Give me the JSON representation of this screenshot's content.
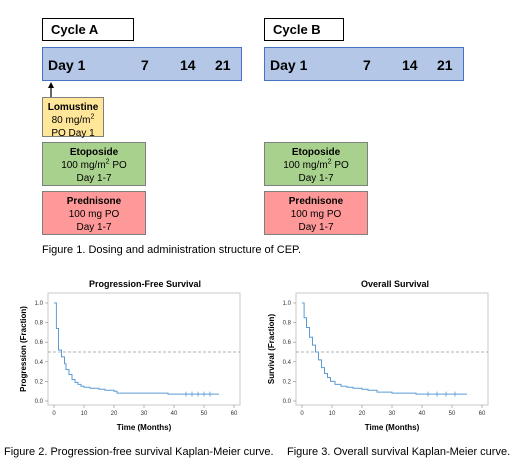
{
  "cycle_a": {
    "label": "Cycle A",
    "timeline": {
      "day1": "Day 1",
      "d7": "7",
      "d14": "14",
      "d21": "21"
    },
    "lomustine": {
      "name": "Lomustine",
      "dose_prefix": "80 mg/m",
      "dose_sup": "2",
      "schedule": "PO Day 1"
    },
    "etoposide": {
      "name": "Etoposide",
      "dose_prefix": "100 mg/m",
      "dose_sup": "2",
      "dose_suffix": " PO",
      "schedule": "Day 1-7"
    },
    "prednisone": {
      "name": "Prednisone",
      "dose": "100 mg PO",
      "schedule": "Day 1-7"
    }
  },
  "cycle_b": {
    "label": "Cycle B",
    "timeline": {
      "day1": "Day 1",
      "d7": "7",
      "d14": "14",
      "d21": "21"
    },
    "etoposide": {
      "name": "Etoposide",
      "dose_prefix": "100 mg/m",
      "dose_sup": "2",
      "dose_suffix": " PO",
      "schedule": "Day 1-7"
    },
    "prednisone": {
      "name": "Prednisone",
      "dose": "100 mg PO",
      "schedule": "Day 1-7"
    }
  },
  "captions": {
    "fig1": "Figure 1. Dosing and administration structure of CEP.",
    "fig2": "Figure 2. Progression-free survival Kaplan-Meier curve.",
    "fig3": "Figure 3. Overall survival Kaplan-Meier curve."
  },
  "colors": {
    "curve": "#5b9bd5",
    "reference_line": "#999999"
  },
  "chart_data": [
    {
      "type": "line",
      "title": "Progression-Free Survival",
      "xlabel": "Time (Months)",
      "ylabel": "Progression (Fraction)",
      "xlim": [
        0,
        60
      ],
      "ylim": [
        0,
        1
      ],
      "xticks": [
        "0",
        "10",
        "20",
        "30",
        "40",
        "50",
        "60"
      ],
      "yticks": [
        "0.0",
        "0.2",
        "0.4",
        "0.6",
        "0.8",
        "1.0"
      ],
      "reference_y": 0.5,
      "grid": false,
      "x": [
        0,
        0.8,
        1.5,
        2.5,
        3.5,
        4,
        5,
        6,
        7,
        8,
        9,
        10,
        12,
        13,
        15,
        17,
        20,
        21,
        25,
        30,
        38,
        45,
        55
      ],
      "y": [
        1.0,
        0.74,
        0.52,
        0.45,
        0.38,
        0.32,
        0.27,
        0.22,
        0.19,
        0.17,
        0.15,
        0.14,
        0.13,
        0.13,
        0.12,
        0.11,
        0.1,
        0.08,
        0.08,
        0.08,
        0.07,
        0.07,
        0.07
      ],
      "censor_x": [
        44,
        46,
        48,
        50,
        52
      ]
    },
    {
      "type": "line",
      "title": "Overall Survival",
      "xlabel": "Time (Months)",
      "ylabel": "Survival (Fraction)",
      "xlim": [
        0,
        60
      ],
      "ylim": [
        0,
        1
      ],
      "xticks": [
        "0",
        "10",
        "20",
        "30",
        "40",
        "50",
        "60"
      ],
      "yticks": [
        "0.0",
        "0.2",
        "0.4",
        "0.6",
        "0.8",
        "1.0"
      ],
      "reference_y": 0.5,
      "grid": false,
      "x": [
        0,
        0.7,
        1.5,
        2.5,
        3.5,
        4.5,
        5.5,
        6.5,
        7.5,
        8.5,
        9.5,
        11,
        13,
        15,
        17,
        20,
        22,
        25,
        30,
        38,
        45,
        55
      ],
      "y": [
        1.0,
        0.85,
        0.75,
        0.65,
        0.57,
        0.5,
        0.42,
        0.34,
        0.28,
        0.24,
        0.2,
        0.17,
        0.15,
        0.14,
        0.13,
        0.12,
        0.11,
        0.09,
        0.08,
        0.07,
        0.07,
        0.07
      ],
      "censor_x": [
        42,
        45,
        48,
        51
      ]
    }
  ]
}
